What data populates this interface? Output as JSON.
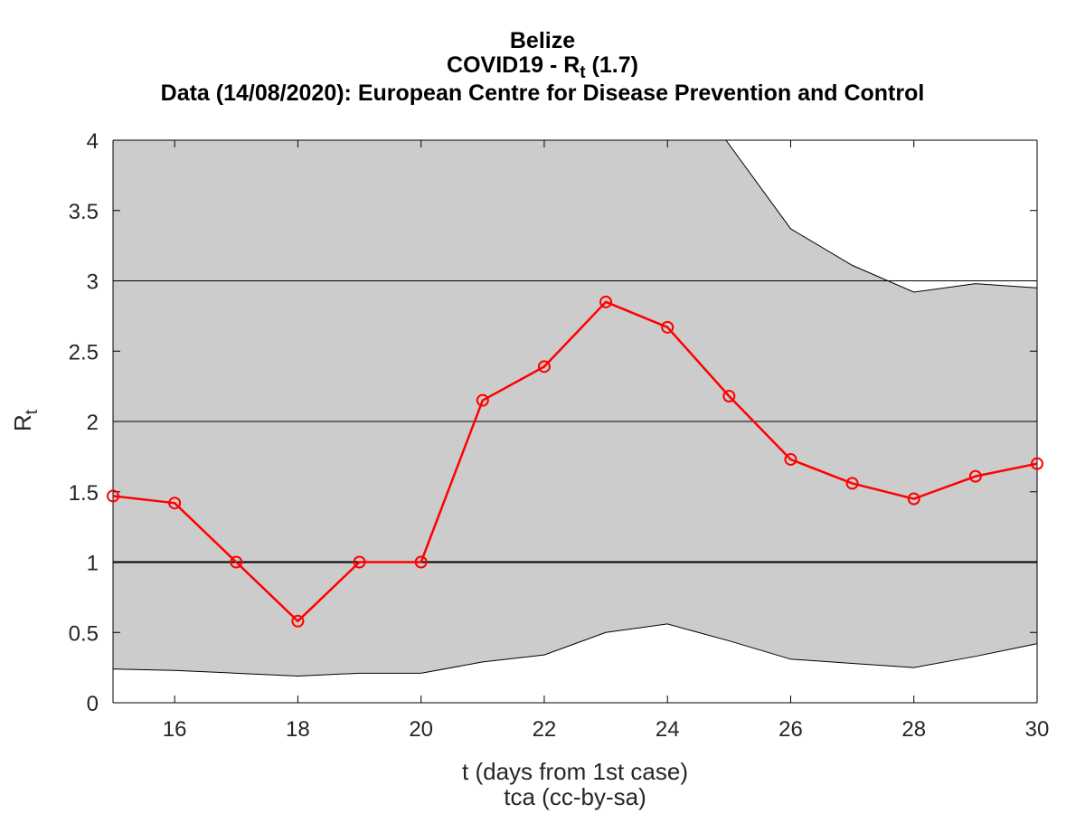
{
  "title": {
    "line1": "Belize",
    "line2_prefix": "COVID19 - R",
    "line2_sub": "t",
    "line2_suffix": " (1.7)",
    "line3": "Data (14/08/2020): European Centre for Disease Prevention and Control"
  },
  "colors": {
    "series": "#ff0000",
    "band": "#cccccc",
    "grid": "#000000",
    "axis_text": "#262626"
  },
  "chart_data": {
    "type": "line",
    "xlabel": "t (days from 1st case)",
    "footer": "tca (cc-by-sa)",
    "ylabel_main": "R",
    "ylabel_sub": "t",
    "xlim": [
      15,
      30
    ],
    "ylim": [
      0,
      4
    ],
    "xticks": [
      16,
      18,
      20,
      22,
      24,
      26,
      28,
      30
    ],
    "yticks": [
      0,
      0.5,
      1,
      1.5,
      2,
      2.5,
      3,
      3.5,
      4
    ],
    "ytick_labels": [
      "0",
      "0.5",
      "1",
      "1.5",
      "2",
      "2.5",
      "3",
      "3.5",
      "4"
    ],
    "grid_lines_y": [
      1,
      2,
      3
    ],
    "reference_line_y": 1,
    "x": [
      15,
      16,
      17,
      18,
      19,
      20,
      21,
      22,
      23,
      24,
      25,
      26,
      27,
      28,
      29,
      30
    ],
    "series": [
      {
        "values": [
          1.47,
          1.42,
          1.0,
          0.58,
          1.0,
          1.0,
          2.15,
          2.39,
          2.85,
          2.67,
          2.18,
          1.73,
          1.56,
          1.45,
          1.61,
          1.7
        ]
      }
    ],
    "band": {
      "upper": [
        4.0,
        4.0,
        4.0,
        4.0,
        4.0,
        4.0,
        4.0,
        4.0,
        4.0,
        4.0,
        4.0,
        3.37,
        3.11,
        2.92,
        2.98,
        2.95
      ],
      "upper_x": [
        15,
        16,
        17,
        18,
        19,
        20,
        21,
        22,
        23,
        24,
        24.95,
        26,
        27,
        28,
        29,
        30
      ],
      "lower": [
        0.24,
        0.23,
        0.21,
        0.19,
        0.21,
        0.21,
        0.29,
        0.34,
        0.5,
        0.56,
        0.44,
        0.31,
        0.28,
        0.25,
        0.33,
        0.42
      ]
    }
  }
}
